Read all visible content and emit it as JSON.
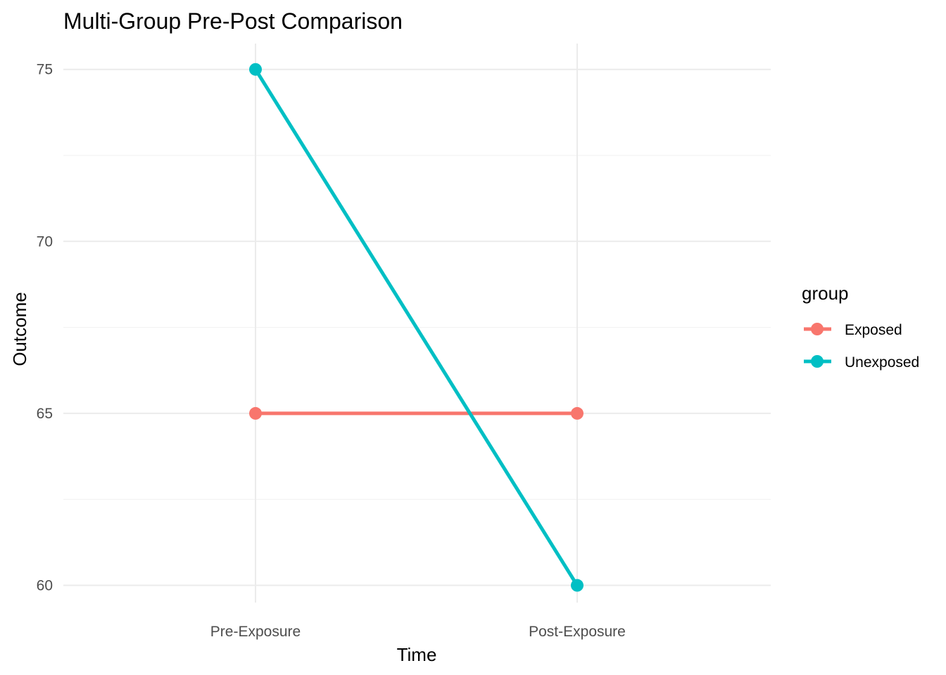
{
  "chart_data": {
    "type": "line",
    "title": "Multi-Group Pre-Post Comparison",
    "xlabel": "Time",
    "ylabel": "Outcome",
    "categories": [
      "Pre-Exposure",
      "Post-Exposure"
    ],
    "ylim": [
      59.5,
      75.75
    ],
    "yticks": [
      60,
      65,
      70,
      75
    ],
    "grid": true,
    "legend": {
      "title": "group",
      "position": "right"
    },
    "series": [
      {
        "name": "Exposed",
        "values": [
          65,
          65
        ],
        "color": "#F8766D"
      },
      {
        "name": "Unexposed",
        "values": [
          75,
          60
        ],
        "color": "#00BFC4"
      }
    ]
  }
}
